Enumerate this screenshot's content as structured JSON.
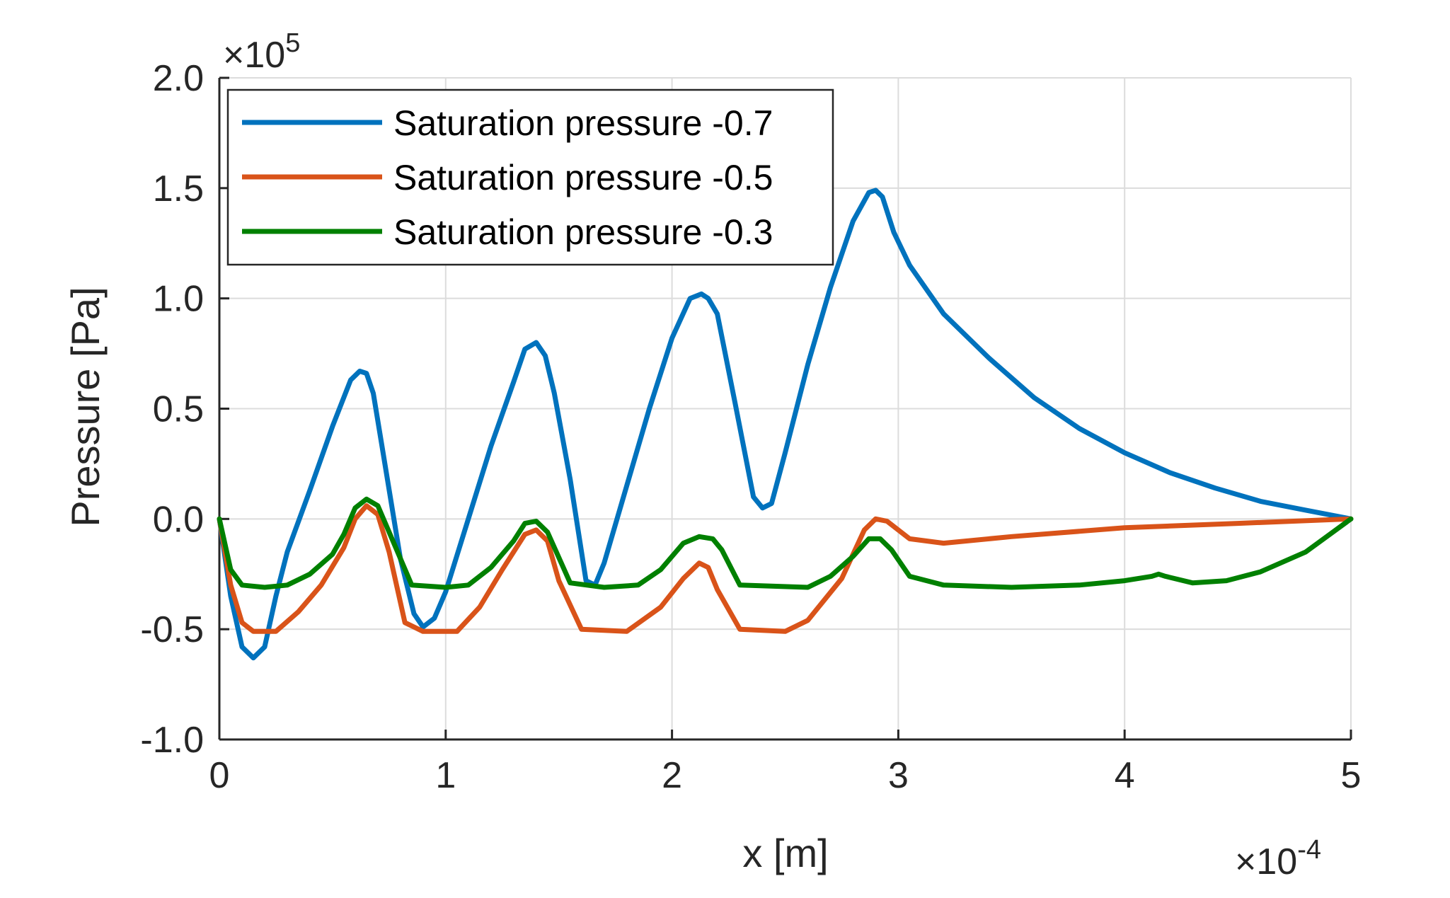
{
  "chart_data": {
    "type": "line",
    "title": "",
    "xlabel": "x [m]",
    "ylabel": "Pressure [Pa]",
    "x_exponent": {
      "base": "×10",
      "exp": "-4"
    },
    "y_exponent": {
      "base": "×10",
      "exp": "5"
    },
    "xlim": [
      0,
      5
    ],
    "ylim": [
      -1.0,
      2.0
    ],
    "x_ticks": [
      0,
      1,
      2,
      3,
      4,
      5
    ],
    "x_tick_labels": [
      "0",
      "1",
      "2",
      "3",
      "4",
      "5"
    ],
    "y_ticks": [
      -1.0,
      -0.5,
      0.0,
      0.5,
      1.0,
      1.5,
      2.0
    ],
    "y_tick_labels": [
      "-1.0",
      "-0.5",
      "0.0",
      "0.5",
      "1.0",
      "1.5",
      "2.0"
    ],
    "grid": true,
    "legend_position": "top-left",
    "series": [
      {
        "name": "Saturation pressure -0.7",
        "color": "#0072BD",
        "x": [
          0,
          0.05,
          0.1,
          0.15,
          0.2,
          0.25,
          0.3,
          0.4,
          0.5,
          0.58,
          0.62,
          0.65,
          0.68,
          0.72,
          0.8,
          0.86,
          0.9,
          0.95,
          1.0,
          1.1,
          1.2,
          1.3,
          1.35,
          1.4,
          1.44,
          1.48,
          1.55,
          1.62,
          1.66,
          1.7,
          1.8,
          1.9,
          2.0,
          2.08,
          2.13,
          2.16,
          2.2,
          2.28,
          2.36,
          2.4,
          2.44,
          2.5,
          2.6,
          2.7,
          2.8,
          2.87,
          2.9,
          2.93,
          2.98,
          3.05,
          3.2,
          3.4,
          3.6,
          3.8,
          4.0,
          4.2,
          4.4,
          4.6,
          4.8,
          5.0
        ],
        "values": [
          0.0,
          -0.35,
          -0.58,
          -0.63,
          -0.58,
          -0.35,
          -0.15,
          0.13,
          0.42,
          0.63,
          0.67,
          0.66,
          0.57,
          0.32,
          -0.18,
          -0.43,
          -0.49,
          -0.45,
          -0.33,
          0.0,
          0.33,
          0.62,
          0.77,
          0.8,
          0.74,
          0.57,
          0.18,
          -0.28,
          -0.3,
          -0.2,
          0.15,
          0.5,
          0.82,
          1.0,
          1.02,
          1.0,
          0.93,
          0.52,
          0.1,
          0.05,
          0.07,
          0.3,
          0.7,
          1.05,
          1.35,
          1.48,
          1.49,
          1.46,
          1.3,
          1.15,
          0.93,
          0.73,
          0.55,
          0.41,
          0.3,
          0.21,
          0.14,
          0.08,
          0.04,
          0.0
        ]
      },
      {
        "name": "Saturation pressure -0.5",
        "color": "#D95319",
        "x": [
          0,
          0.05,
          0.1,
          0.15,
          0.25,
          0.35,
          0.45,
          0.55,
          0.6,
          0.65,
          0.7,
          0.75,
          0.82,
          0.9,
          1.05,
          1.15,
          1.25,
          1.35,
          1.4,
          1.45,
          1.5,
          1.6,
          1.8,
          1.95,
          2.05,
          2.12,
          2.16,
          2.2,
          2.3,
          2.5,
          2.6,
          2.75,
          2.85,
          2.9,
          2.95,
          3.05,
          3.2,
          3.5,
          4.0,
          4.5,
          5.0
        ],
        "values": [
          0.0,
          -0.3,
          -0.47,
          -0.51,
          -0.51,
          -0.42,
          -0.3,
          -0.13,
          0.0,
          0.06,
          0.02,
          -0.15,
          -0.47,
          -0.51,
          -0.51,
          -0.4,
          -0.23,
          -0.07,
          -0.05,
          -0.1,
          -0.28,
          -0.5,
          -0.51,
          -0.4,
          -0.27,
          -0.2,
          -0.22,
          -0.32,
          -0.5,
          -0.51,
          -0.46,
          -0.27,
          -0.05,
          0.0,
          -0.01,
          -0.09,
          -0.11,
          -0.08,
          -0.04,
          -0.02,
          0.0
        ]
      },
      {
        "name": "Saturation pressure -0.3",
        "color": "#008000",
        "x": [
          0,
          0.05,
          0.1,
          0.2,
          0.3,
          0.4,
          0.5,
          0.55,
          0.6,
          0.65,
          0.7,
          0.75,
          0.85,
          1.0,
          1.1,
          1.2,
          1.3,
          1.35,
          1.4,
          1.45,
          1.55,
          1.7,
          1.85,
          1.95,
          2.05,
          2.12,
          2.18,
          2.22,
          2.3,
          2.6,
          2.7,
          2.8,
          2.87,
          2.92,
          2.97,
          3.05,
          3.2,
          3.5,
          3.8,
          4.0,
          4.12,
          4.15,
          4.18,
          4.3,
          4.45,
          4.6,
          4.8,
          5.0
        ],
        "values": [
          0.0,
          -0.23,
          -0.3,
          -0.31,
          -0.3,
          -0.25,
          -0.16,
          -0.07,
          0.05,
          0.09,
          0.06,
          -0.06,
          -0.3,
          -0.31,
          -0.3,
          -0.22,
          -0.1,
          -0.02,
          -0.01,
          -0.06,
          -0.29,
          -0.31,
          -0.3,
          -0.23,
          -0.11,
          -0.08,
          -0.09,
          -0.14,
          -0.3,
          -0.31,
          -0.26,
          -0.17,
          -0.09,
          -0.09,
          -0.14,
          -0.26,
          -0.3,
          -0.31,
          -0.3,
          -0.28,
          -0.26,
          -0.25,
          -0.26,
          -0.29,
          -0.28,
          -0.24,
          -0.15,
          0.0
        ]
      }
    ]
  }
}
